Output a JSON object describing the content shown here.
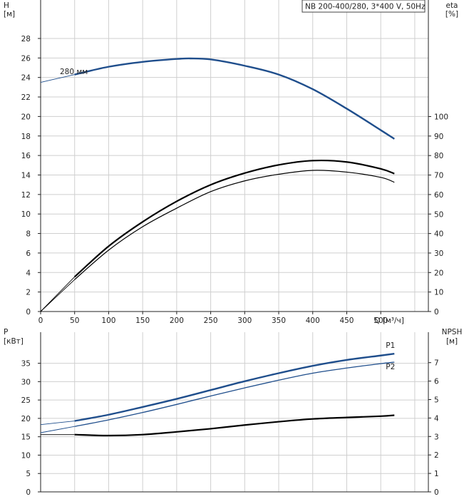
{
  "chart_data": [
    {
      "type": "line",
      "panel": "top",
      "legend_box": "NB 200-400/280, 3*400 V, 50Hz",
      "left_axis": {
        "title_top": "H",
        "unit": "[м]",
        "range": [
          0,
          28
        ],
        "ticks": [
          0,
          2,
          4,
          6,
          8,
          10,
          12,
          14,
          16,
          18,
          20,
          22,
          24,
          26,
          28
        ]
      },
      "right_axis": {
        "title_top": "eta",
        "unit": "[%]",
        "range": [
          0,
          100
        ],
        "ticks": [
          0,
          10,
          20,
          30,
          40,
          50,
          60,
          70,
          80,
          90,
          100
        ]
      },
      "x_axis": {
        "label": "Q [м³/ч]",
        "range": [
          0,
          520
        ],
        "ticks": [
          0,
          50,
          100,
          150,
          200,
          250,
          300,
          350,
          400,
          450,
          500
        ]
      },
      "grid": true,
      "annotations": [
        {
          "text": "280 мм",
          "x": 30,
          "y": 24.2
        }
      ],
      "series": [
        {
          "name": "280 мм",
          "axis": "left",
          "color": "#1f4e8c",
          "x": [
            0,
            25,
            50,
            100,
            150,
            200,
            220,
            250,
            300,
            350,
            400,
            450,
            500,
            520
          ],
          "y": [
            23.5,
            23.9,
            24.3,
            25.1,
            25.6,
            25.9,
            25.95,
            25.85,
            25.2,
            24.3,
            22.8,
            20.8,
            18.6,
            17.7
          ],
          "solid_from_x": 50
        },
        {
          "axis": "right",
          "color": "#000000",
          "x": [
            0,
            50,
            100,
            150,
            200,
            250,
            300,
            350,
            400,
            450,
            500,
            520
          ],
          "y": [
            0,
            16.4,
            31.5,
            43.5,
            53,
            61.5,
            67,
            70.4,
            72.4,
            71.5,
            68.8,
            66.3
          ],
          "solid_from_x": 50
        },
        {
          "axis": "right",
          "color": "#000000",
          "x": [
            0,
            50,
            100,
            150,
            200,
            250,
            300,
            350,
            400,
            450,
            500,
            520
          ],
          "y": [
            0,
            17.8,
            33.5,
            46,
            56.5,
            65,
            71,
            75.2,
            77.4,
            76.7,
            73.2,
            70.7
          ],
          "solid_from_x": 50
        }
      ]
    },
    {
      "type": "line",
      "panel": "bottom",
      "left_axis": {
        "title_top": "P",
        "unit": "[кВт]",
        "range": [
          0,
          40
        ],
        "ticks": [
          0,
          5,
          10,
          15,
          20,
          25,
          30,
          35
        ]
      },
      "right_axis": {
        "title_top": "NPSH",
        "unit": "[м]",
        "range": [
          0,
          8
        ],
        "ticks": [
          0,
          1,
          2,
          3,
          4,
          5,
          6,
          7
        ]
      },
      "x_axis": {
        "range": [
          0,
          520
        ]
      },
      "grid": true,
      "series": [
        {
          "name": "P1",
          "axis": "left",
          "color": "#1f4e8c",
          "x": [
            0,
            50,
            100,
            150,
            200,
            250,
            300,
            350,
            400,
            450,
            500,
            520
          ],
          "y": [
            18.3,
            19.3,
            21,
            23.1,
            25.3,
            27.7,
            30.1,
            32.3,
            34.3,
            35.9,
            37.1,
            37.6
          ],
          "solid_from_x": 50
        },
        {
          "name": "P2",
          "axis": "left",
          "color": "#1f4e8c",
          "x": [
            0,
            50,
            100,
            150,
            200,
            250,
            300,
            350,
            400,
            450,
            500,
            520
          ],
          "y": [
            16.1,
            17.8,
            19.6,
            21.6,
            23.8,
            26.1,
            28.3,
            30.4,
            32.3,
            33.7,
            34.9,
            35.3
          ],
          "solid_from_x": 50
        },
        {
          "axis": "right",
          "color": "#000000",
          "x": [
            0,
            50,
            100,
            150,
            200,
            250,
            300,
            350,
            400,
            450,
            500,
            520
          ],
          "y": [
            3.1,
            3.1,
            3.05,
            3.1,
            3.25,
            3.42,
            3.62,
            3.8,
            3.95,
            4.03,
            4.1,
            4.15
          ],
          "solid_from_x": 50
        }
      ]
    }
  ]
}
